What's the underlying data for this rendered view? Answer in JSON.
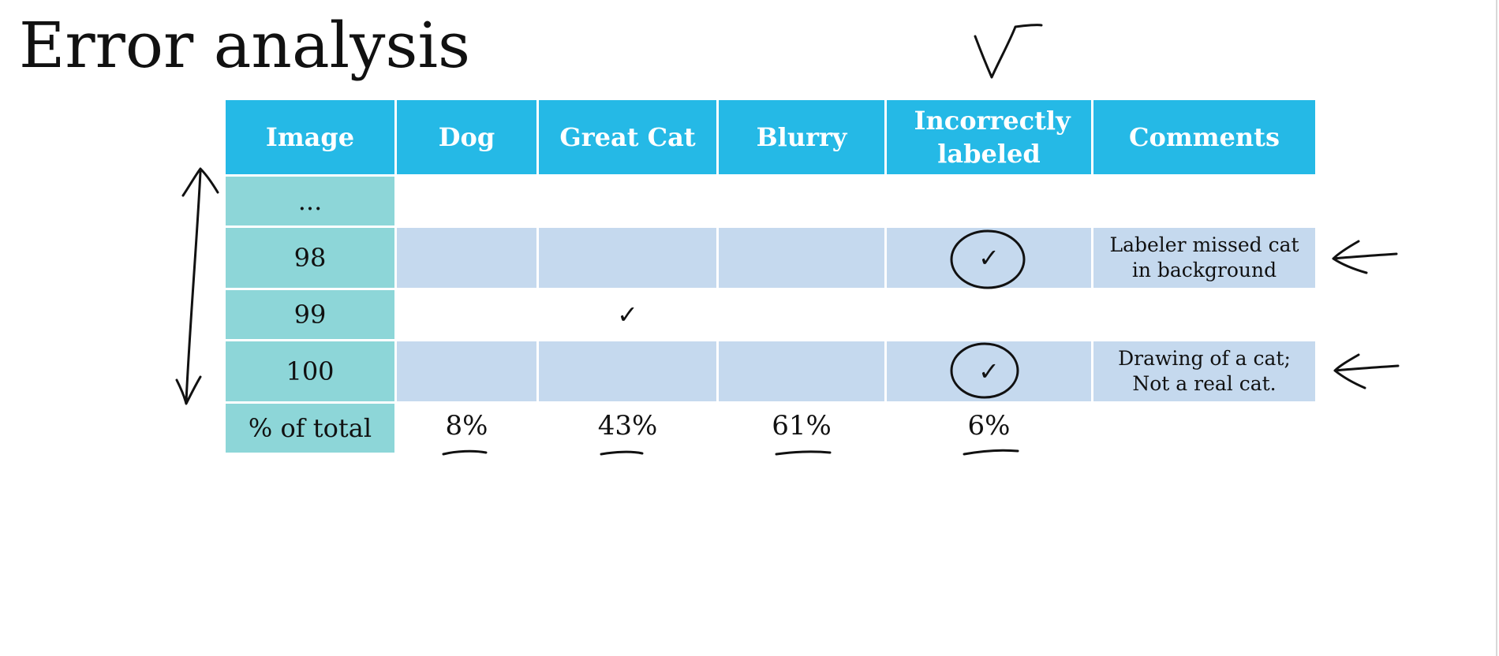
{
  "title": "Error analysis",
  "table": {
    "headers": {
      "image": "Image",
      "dog": "Dog",
      "great_cat": "Great Cat",
      "blurry": "Blurry",
      "incorrectly_labeled": "Incorrectly labeled",
      "comments": "Comments"
    },
    "rows": [
      {
        "image": "...",
        "dog": "",
        "great_cat": "",
        "blurry": "",
        "incorrectly_labeled": "",
        "comments": ""
      },
      {
        "image": "98",
        "dog": "",
        "great_cat": "",
        "blurry": "",
        "incorrectly_labeled": "✓",
        "comments": "Labeler missed cat in background"
      },
      {
        "image": "99",
        "dog": "",
        "great_cat": "✓",
        "blurry": "",
        "incorrectly_labeled": "",
        "comments": ""
      },
      {
        "image": "100",
        "dog": "",
        "great_cat": "",
        "blurry": "",
        "incorrectly_labeled": "✓",
        "comments": "Drawing of a cat; Not a real cat."
      }
    ],
    "totals": {
      "label": "% of total",
      "dog": "8%",
      "great_cat": "43%",
      "blurry": "61%",
      "incorrectly_labeled": "6%",
      "comments": ""
    }
  },
  "annotations": {
    "ink_color": "#111111",
    "marks": [
      "checkmark-icon",
      "double-arrow-icon",
      "left-arrow-icon",
      "circle-icon",
      "underline-mark"
    ]
  }
}
